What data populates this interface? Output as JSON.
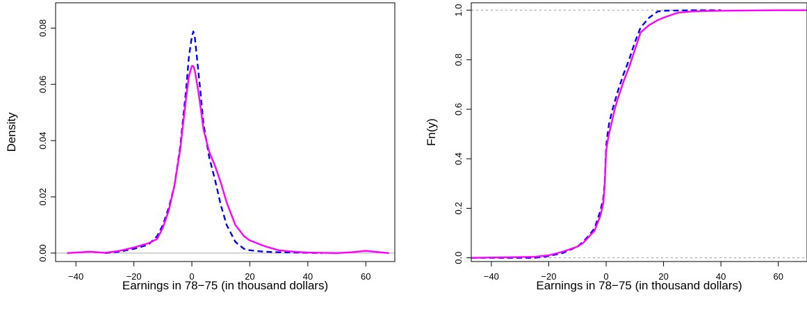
{
  "chart_data": [
    {
      "type": "line",
      "title": "",
      "xlabel": "Earnings in 78−75 (in thousand dollars)",
      "ylabel": "Density",
      "xlim": [
        -47,
        70
      ],
      "ylim": [
        -0.003,
        0.089
      ],
      "xticks": [
        -40,
        -20,
        0,
        20,
        40,
        60
      ],
      "xtick_labels": [
        "−40",
        "−20",
        "0",
        "20",
        "40",
        "60"
      ],
      "yticks": [
        0.0,
        0.02,
        0.04,
        0.06,
        0.08
      ],
      "ytick_labels": [
        "0.00",
        "0.02",
        "0.04",
        "0.06",
        "0.08"
      ],
      "grid": false,
      "reference_lines": [
        {
          "axis": "y",
          "value": 0,
          "color": "#aaaaaa",
          "style": "solid"
        }
      ],
      "series": [
        {
          "color": "#0000ee",
          "style": "dashed",
          "x": [
            -30,
            -25,
            -20,
            -15,
            -12,
            -10,
            -8,
            -6,
            -4,
            -2,
            -1,
            0,
            0.5,
            1,
            2,
            3,
            4,
            6,
            8,
            10,
            12,
            15,
            18,
            20,
            25,
            30,
            35,
            40,
            45
          ],
          "y": [
            0.0,
            0.0005,
            0.0015,
            0.003,
            0.006,
            0.01,
            0.016,
            0.024,
            0.038,
            0.058,
            0.07,
            0.077,
            0.0788,
            0.077,
            0.067,
            0.057,
            0.046,
            0.034,
            0.026,
            0.017,
            0.01,
            0.004,
            0.0015,
            0.001,
            0.0005,
            0.0003,
            0.0002,
            0.0001,
            0.0
          ]
        },
        {
          "color": "#ff00ff",
          "style": "solid",
          "x": [
            -43,
            -40,
            -35,
            -30,
            -25,
            -20,
            -15,
            -12,
            -10,
            -8,
            -6,
            -4,
            -2,
            -1,
            0,
            0.5,
            1,
            2,
            3,
            4,
            6,
            8,
            10,
            12,
            15,
            18,
            20,
            25,
            30,
            35,
            40,
            45,
            50,
            55,
            60,
            65,
            68
          ],
          "y": [
            0.0,
            0.0002,
            0.0005,
            0.0001,
            0.0008,
            0.002,
            0.0035,
            0.005,
            0.009,
            0.015,
            0.024,
            0.037,
            0.055,
            0.063,
            0.0665,
            0.0665,
            0.065,
            0.059,
            0.052,
            0.044,
            0.036,
            0.031,
            0.025,
            0.018,
            0.01,
            0.006,
            0.0045,
            0.0025,
            0.001,
            0.0005,
            0.0002,
            0.0001,
            0.0,
            0.0003,
            0.0008,
            0.0003,
            0.0
          ]
        }
      ]
    },
    {
      "type": "line",
      "title": "",
      "xlabel": "Earnings in 78−75 (in thousand dollars)",
      "ylabel": "Fn(y)",
      "xlim": [
        -47,
        70
      ],
      "ylim": [
        -0.015,
        1.03
      ],
      "xticks": [
        -40,
        -20,
        0,
        20,
        40,
        60
      ],
      "xtick_labels": [
        "−40",
        "−20",
        "0",
        "20",
        "40",
        "60"
      ],
      "yticks": [
        0.0,
        0.2,
        0.4,
        0.6,
        0.8,
        1.0
      ],
      "ytick_labels": [
        "0.0",
        "0.2",
        "0.4",
        "0.6",
        "0.8",
        "1.0"
      ],
      "grid": false,
      "reference_lines": [
        {
          "axis": "y",
          "value": 0,
          "color": "#999999",
          "style": "dotted"
        },
        {
          "axis": "y",
          "value": 1,
          "color": "#999999",
          "style": "dotted"
        }
      ],
      "series": [
        {
          "color": "#0000ee",
          "style": "dashed",
          "x": [
            -47,
            -25,
            -20,
            -15,
            -10,
            -8,
            -6,
            -4,
            -2,
            -1,
            -0.5,
            0,
            0.5,
            1,
            2,
            3,
            4,
            6,
            8,
            10,
            12,
            15,
            18,
            20,
            25,
            30,
            35,
            40
          ],
          "y": [
            0.0,
            0.0,
            0.007,
            0.02,
            0.045,
            0.065,
            0.09,
            0.12,
            0.19,
            0.24,
            0.3,
            0.45,
            0.5,
            0.54,
            0.59,
            0.63,
            0.67,
            0.74,
            0.8,
            0.87,
            0.93,
            0.97,
            0.995,
            0.998,
            0.999,
            1.0,
            1.0,
            1.0
          ]
        },
        {
          "color": "#ff00ff",
          "style": "solid",
          "x": [
            -47,
            -35,
            -25,
            -20,
            -15,
            -10,
            -8,
            -6,
            -4,
            -2,
            -1,
            -0.5,
            0,
            0.5,
            1,
            2,
            3,
            4,
            6,
            8,
            10,
            12,
            15,
            18,
            20,
            25,
            30,
            35,
            40,
            50,
            60,
            70
          ],
          "y": [
            0.0,
            0.002,
            0.004,
            0.01,
            0.025,
            0.045,
            0.06,
            0.085,
            0.11,
            0.17,
            0.22,
            0.29,
            0.43,
            0.47,
            0.5,
            0.55,
            0.6,
            0.64,
            0.71,
            0.77,
            0.84,
            0.91,
            0.94,
            0.96,
            0.97,
            0.99,
            0.995,
            0.997,
            0.998,
            0.999,
            1.0,
            1.0
          ]
        }
      ]
    }
  ]
}
